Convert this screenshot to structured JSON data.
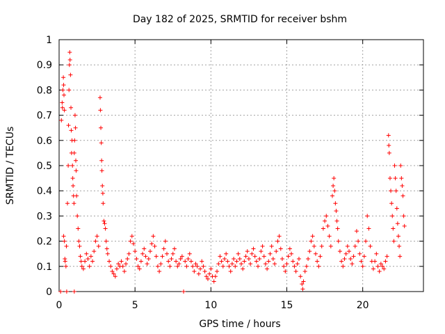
{
  "chart_data": {
    "type": "scatter",
    "title": "Day 182 of 2025, SRMTID for receiver bshm",
    "xlabel": "GPS time / hours",
    "ylabel": "SRMTID / TECUs",
    "xlim": [
      0,
      24
    ],
    "ylim": [
      0,
      1
    ],
    "xticks": [
      0,
      5,
      10,
      15,
      20
    ],
    "xtick_labels": [
      "0",
      "5",
      "10",
      "15",
      "20"
    ],
    "yticks": [
      0,
      0.1,
      0.2,
      0.3,
      0.4,
      0.5,
      0.6,
      0.7,
      0.8,
      0.9,
      1
    ],
    "ytick_labels": [
      "0",
      "0.1",
      "0.2",
      "0.3",
      "0.4",
      "0.5",
      "0.6",
      "0.7",
      "0.8",
      "0.9",
      "1"
    ],
    "grid": true,
    "marker": "+",
    "color": "#ff0000",
    "series": [
      {
        "name": "SRMTID",
        "points": [
          [
            0.1,
            0.0
          ],
          [
            0.15,
            0.68
          ],
          [
            0.2,
            0.75
          ],
          [
            0.22,
            0.73
          ],
          [
            0.25,
            0.8
          ],
          [
            0.28,
            0.85
          ],
          [
            0.3,
            0.82
          ],
          [
            0.32,
            0.78
          ],
          [
            0.35,
            0.72
          ],
          [
            0.3,
            0.22
          ],
          [
            0.35,
            0.2
          ],
          [
            0.38,
            0.13
          ],
          [
            0.4,
            0.12
          ],
          [
            0.45,
            0.1
          ],
          [
            0.48,
            0.18
          ],
          [
            0.5,
            0.0
          ],
          [
            0.55,
            0.35
          ],
          [
            0.6,
            0.5
          ],
          [
            0.62,
            0.66
          ],
          [
            0.65,
            0.8
          ],
          [
            0.68,
            0.9
          ],
          [
            0.7,
            0.95
          ],
          [
            0.72,
            0.92
          ],
          [
            0.75,
            0.86
          ],
          [
            0.78,
            0.73
          ],
          [
            0.8,
            0.64
          ],
          [
            0.82,
            0.55
          ],
          [
            0.85,
            0.6
          ],
          [
            0.88,
            0.5
          ],
          [
            0.9,
            0.45
          ],
          [
            0.92,
            0.42
          ],
          [
            0.95,
            0.38
          ],
          [
            0.98,
            0.35
          ],
          [
            1.0,
            0.0
          ],
          [
            1.0,
            0.55
          ],
          [
            1.02,
            0.6
          ],
          [
            1.05,
            0.7
          ],
          [
            1.08,
            0.65
          ],
          [
            1.1,
            0.52
          ],
          [
            1.12,
            0.48
          ],
          [
            1.15,
            0.38
          ],
          [
            1.2,
            0.3
          ],
          [
            1.25,
            0.25
          ],
          [
            1.3,
            0.2
          ],
          [
            1.35,
            0.18
          ],
          [
            1.4,
            0.14
          ],
          [
            1.45,
            0.12
          ],
          [
            1.5,
            0.1
          ],
          [
            1.6,
            0.09
          ],
          [
            1.7,
            0.12
          ],
          [
            1.8,
            0.15
          ],
          [
            1.9,
            0.13
          ],
          [
            2.0,
            0.1
          ],
          [
            2.1,
            0.14
          ],
          [
            2.2,
            0.12
          ],
          [
            2.3,
            0.16
          ],
          [
            2.4,
            0.2
          ],
          [
            2.5,
            0.22
          ],
          [
            2.6,
            0.18
          ],
          [
            2.7,
            0.77
          ],
          [
            2.72,
            0.72
          ],
          [
            2.75,
            0.65
          ],
          [
            2.78,
            0.59
          ],
          [
            2.8,
            0.52
          ],
          [
            2.82,
            0.48
          ],
          [
            2.85,
            0.42
          ],
          [
            2.88,
            0.39
          ],
          [
            2.9,
            0.35
          ],
          [
            2.95,
            0.28
          ],
          [
            3.0,
            0.27
          ],
          [
            3.05,
            0.25
          ],
          [
            3.1,
            0.2
          ],
          [
            3.15,
            0.17
          ],
          [
            3.2,
            0.15
          ],
          [
            3.3,
            0.12
          ],
          [
            3.4,
            0.1
          ],
          [
            3.5,
            0.08
          ],
          [
            3.6,
            0.07
          ],
          [
            3.7,
            0.06
          ],
          [
            3.8,
            0.09
          ],
          [
            3.9,
            0.11
          ],
          [
            4.0,
            0.1
          ],
          [
            4.1,
            0.12
          ],
          [
            4.2,
            0.1
          ],
          [
            4.3,
            0.08
          ],
          [
            4.4,
            0.11
          ],
          [
            4.5,
            0.13
          ],
          [
            4.6,
            0.15
          ],
          [
            4.7,
            0.2
          ],
          [
            4.8,
            0.22
          ],
          [
            4.9,
            0.19
          ],
          [
            5.0,
            0.16
          ],
          [
            5.1,
            0.13
          ],
          [
            5.2,
            0.1
          ],
          [
            5.3,
            0.09
          ],
          [
            5.4,
            0.12
          ],
          [
            5.5,
            0.15
          ],
          [
            5.6,
            0.17
          ],
          [
            5.7,
            0.14
          ],
          [
            5.8,
            0.11
          ],
          [
            5.9,
            0.13
          ],
          [
            6.0,
            0.16
          ],
          [
            6.1,
            0.19
          ],
          [
            6.2,
            0.22
          ],
          [
            6.3,
            0.18
          ],
          [
            6.4,
            0.14
          ],
          [
            6.5,
            0.1
          ],
          [
            6.6,
            0.08
          ],
          [
            6.7,
            0.11
          ],
          [
            6.8,
            0.14
          ],
          [
            6.9,
            0.17
          ],
          [
            7.0,
            0.2
          ],
          [
            7.1,
            0.15
          ],
          [
            7.2,
            0.12
          ],
          [
            7.3,
            0.1
          ],
          [
            7.4,
            0.13
          ],
          [
            7.5,
            0.15
          ],
          [
            7.6,
            0.17
          ],
          [
            7.7,
            0.12
          ],
          [
            7.8,
            0.1
          ],
          [
            7.9,
            0.11
          ],
          [
            8.0,
            0.13
          ],
          [
            8.1,
            0.14
          ],
          [
            8.2,
            0.0
          ],
          [
            8.3,
            0.12
          ],
          [
            8.4,
            0.1
          ],
          [
            8.5,
            0.13
          ],
          [
            8.6,
            0.15
          ],
          [
            8.7,
            0.12
          ],
          [
            8.8,
            0.1
          ],
          [
            8.9,
            0.08
          ],
          [
            9.0,
            0.11
          ],
          [
            9.1,
            0.1
          ],
          [
            9.2,
            0.07
          ],
          [
            9.3,
            0.09
          ],
          [
            9.4,
            0.12
          ],
          [
            9.5,
            0.1
          ],
          [
            9.6,
            0.08
          ],
          [
            9.7,
            0.06
          ],
          [
            9.8,
            0.05
          ],
          [
            9.9,
            0.07
          ],
          [
            10.0,
            0.09
          ],
          [
            10.1,
            0.06
          ],
          [
            10.2,
            0.04
          ],
          [
            10.3,
            0.06
          ],
          [
            10.4,
            0.08
          ],
          [
            10.5,
            0.11
          ],
          [
            10.6,
            0.14
          ],
          [
            10.7,
            0.12
          ],
          [
            10.8,
            0.1
          ],
          [
            10.9,
            0.13
          ],
          [
            11.0,
            0.15
          ],
          [
            11.1,
            0.12
          ],
          [
            11.2,
            0.1
          ],
          [
            11.3,
            0.08
          ],
          [
            11.4,
            0.11
          ],
          [
            11.5,
            0.13
          ],
          [
            11.6,
            0.1
          ],
          [
            11.7,
            0.12
          ],
          [
            11.8,
            0.15
          ],
          [
            11.9,
            0.13
          ],
          [
            12.0,
            0.11
          ],
          [
            12.1,
            0.09
          ],
          [
            12.2,
            0.12
          ],
          [
            12.3,
            0.14
          ],
          [
            12.4,
            0.16
          ],
          [
            12.5,
            0.13
          ],
          [
            12.6,
            0.11
          ],
          [
            12.7,
            0.15
          ],
          [
            12.8,
            0.17
          ],
          [
            12.9,
            0.14
          ],
          [
            13.0,
            0.12
          ],
          [
            13.1,
            0.1
          ],
          [
            13.2,
            0.13
          ],
          [
            13.3,
            0.16
          ],
          [
            13.4,
            0.18
          ],
          [
            13.5,
            0.14
          ],
          [
            13.6,
            0.11
          ],
          [
            13.7,
            0.09
          ],
          [
            13.8,
            0.12
          ],
          [
            13.9,
            0.15
          ],
          [
            14.0,
            0.18
          ],
          [
            14.1,
            0.13
          ],
          [
            14.2,
            0.11
          ],
          [
            14.3,
            0.16
          ],
          [
            14.4,
            0.2
          ],
          [
            14.5,
            0.22
          ],
          [
            14.6,
            0.17
          ],
          [
            14.7,
            0.13
          ],
          [
            14.8,
            0.1
          ],
          [
            14.9,
            0.08
          ],
          [
            15.0,
            0.11
          ],
          [
            15.1,
            0.14
          ],
          [
            15.2,
            0.17
          ],
          [
            15.3,
            0.15
          ],
          [
            15.4,
            0.12
          ],
          [
            15.5,
            0.1
          ],
          [
            15.6,
            0.08
          ],
          [
            15.7,
            0.11
          ],
          [
            15.8,
            0.13
          ],
          [
            15.9,
            0.06
          ],
          [
            16.0,
            0.03
          ],
          [
            16.05,
            0.01
          ],
          [
            16.1,
            0.04
          ],
          [
            16.2,
            0.08
          ],
          [
            16.3,
            0.1
          ],
          [
            16.4,
            0.13
          ],
          [
            16.5,
            0.16
          ],
          [
            16.6,
            0.2
          ],
          [
            16.7,
            0.22
          ],
          [
            16.8,
            0.18
          ],
          [
            16.9,
            0.15
          ],
          [
            17.0,
            0.12
          ],
          [
            17.1,
            0.1
          ],
          [
            17.2,
            0.14
          ],
          [
            17.3,
            0.18
          ],
          [
            17.4,
            0.25
          ],
          [
            17.5,
            0.28
          ],
          [
            17.6,
            0.3
          ],
          [
            17.7,
            0.26
          ],
          [
            17.8,
            0.22
          ],
          [
            17.9,
            0.18
          ],
          [
            18.0,
            0.38
          ],
          [
            18.05,
            0.42
          ],
          [
            18.1,
            0.45
          ],
          [
            18.15,
            0.4
          ],
          [
            18.2,
            0.35
          ],
          [
            18.25,
            0.32
          ],
          [
            18.3,
            0.28
          ],
          [
            18.35,
            0.25
          ],
          [
            18.4,
            0.2
          ],
          [
            18.5,
            0.16
          ],
          [
            18.6,
            0.12
          ],
          [
            18.7,
            0.1
          ],
          [
            18.8,
            0.13
          ],
          [
            18.9,
            0.15
          ],
          [
            19.0,
            0.18
          ],
          [
            19.1,
            0.16
          ],
          [
            19.2,
            0.13
          ],
          [
            19.3,
            0.11
          ],
          [
            19.4,
            0.14
          ],
          [
            19.5,
            0.18
          ],
          [
            19.6,
            0.24
          ],
          [
            19.7,
            0.2
          ],
          [
            19.8,
            0.15
          ],
          [
            19.9,
            0.12
          ],
          [
            20.0,
            0.1
          ],
          [
            20.1,
            0.14
          ],
          [
            20.2,
            0.2
          ],
          [
            20.3,
            0.3
          ],
          [
            20.4,
            0.25
          ],
          [
            20.5,
            0.18
          ],
          [
            20.6,
            0.12
          ],
          [
            20.7,
            0.09
          ],
          [
            20.8,
            0.12
          ],
          [
            20.9,
            0.15
          ],
          [
            21.0,
            0.1
          ],
          [
            21.1,
            0.08
          ],
          [
            21.2,
            0.11
          ],
          [
            21.3,
            0.1
          ],
          [
            21.4,
            0.09
          ],
          [
            21.5,
            0.12
          ],
          [
            21.6,
            0.14
          ],
          [
            21.7,
            0.62
          ],
          [
            21.72,
            0.58
          ],
          [
            21.75,
            0.55
          ],
          [
            21.8,
            0.45
          ],
          [
            21.85,
            0.4
          ],
          [
            21.9,
            0.35
          ],
          [
            21.95,
            0.3
          ],
          [
            22.0,
            0.25
          ],
          [
            22.05,
            0.2
          ],
          [
            22.1,
            0.5
          ],
          [
            22.15,
            0.45
          ],
          [
            22.2,
            0.4
          ],
          [
            22.25,
            0.33
          ],
          [
            22.3,
            0.27
          ],
          [
            22.35,
            0.22
          ],
          [
            22.4,
            0.18
          ],
          [
            22.45,
            0.14
          ],
          [
            22.5,
            0.5
          ],
          [
            22.55,
            0.45
          ],
          [
            22.6,
            0.42
          ],
          [
            22.65,
            0.38
          ],
          [
            22.7,
            0.3
          ],
          [
            22.75,
            0.26
          ]
        ]
      }
    ]
  }
}
